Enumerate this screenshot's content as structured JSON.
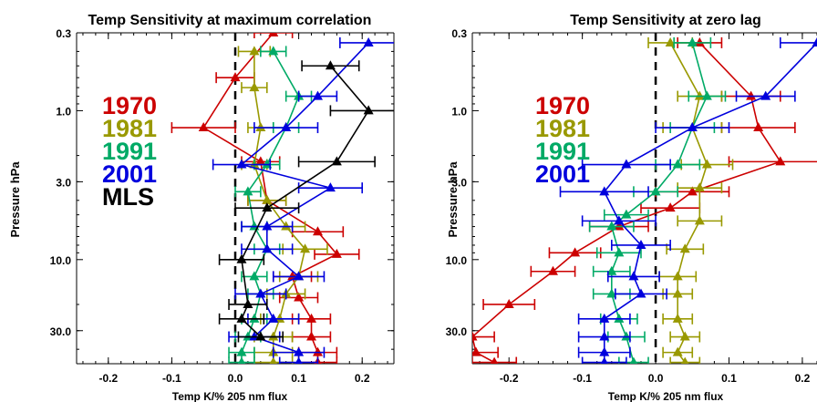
{
  "chart_data": [
    {
      "type": "line",
      "title": "Temp Sensitivity at maximum correlation",
      "xlabel": "Temp K/% 205 nm flux",
      "ylabel": "Pressure hPa",
      "xlim": [
        -0.25,
        0.25
      ],
      "ylim": [
        50,
        0.3
      ],
      "y_scale": "log",
      "x_ticks": [
        "-0.2",
        "-0.1",
        "0.0",
        "0.1",
        "0.2"
      ],
      "y_ticks": [
        "0.3",
        "1.0",
        "3.0",
        "10.0",
        "30.0"
      ],
      "reference_line_x": 0,
      "legend": [
        "1970",
        "1981",
        "1991",
        "2001",
        "MLS"
      ],
      "series": [
        {
          "name": "1970",
          "color": "#cc0000",
          "points": [
            [
              0.06,
              0.3
            ],
            [
              0.0,
              0.6
            ],
            [
              -0.05,
              1.3
            ],
            [
              0.04,
              2.2
            ],
            [
              0.05,
              4.0
            ],
            [
              0.13,
              6.5
            ],
            [
              0.16,
              9.2
            ],
            [
              0.09,
              13
            ],
            [
              0.1,
              18
            ],
            [
              0.12,
              25
            ],
            [
              0.12,
              33
            ],
            [
              0.13,
              42
            ],
            [
              0.13,
              49
            ]
          ],
          "err": [
            0.03,
            0.03,
            0.05,
            0.03,
            0.03,
            0.04,
            0.035,
            0.03,
            0.03,
            0.03,
            0.03,
            0.03,
            0.03
          ]
        },
        {
          "name": "1981",
          "color": "#999900",
          "points": [
            [
              0.03,
              0.4
            ],
            [
              0.03,
              0.7
            ],
            [
              0.04,
              1.3
            ],
            [
              0.03,
              2.3
            ],
            [
              0.05,
              4.0
            ],
            [
              0.08,
              6.0
            ],
            [
              0.11,
              8.5
            ],
            [
              0.1,
              13
            ],
            [
              0.08,
              17
            ],
            [
              0.07,
              25
            ],
            [
              0.06,
              33
            ],
            [
              0.06,
              42
            ],
            [
              0.06,
              49
            ]
          ],
          "err": [
            0.025,
            0.02,
            0.02,
            0.02,
            0.03,
            0.03,
            0.035,
            0.03,
            0.03,
            0.03,
            0.03,
            0.03,
            0.03
          ]
        },
        {
          "name": "1991",
          "color": "#00aa66",
          "points": [
            [
              0.06,
              0.4
            ],
            [
              0.1,
              0.8
            ],
            [
              0.08,
              1.3
            ],
            [
              0.05,
              2.3
            ],
            [
              0.02,
              3.5
            ],
            [
              0.03,
              6.0
            ],
            [
              0.05,
              8.5
            ],
            [
              0.03,
              13
            ],
            [
              0.04,
              17
            ],
            [
              0.03,
              25
            ],
            [
              0.02,
              33
            ],
            [
              0.01,
              42
            ],
            [
              0.01,
              49
            ]
          ],
          "err": [
            0.02,
            0.02,
            0.02,
            0.02,
            0.02,
            0.02,
            0.02,
            0.02,
            0.02,
            0.02,
            0.02,
            0.02,
            0.02
          ]
        },
        {
          "name": "2001",
          "color": "#0000dd",
          "points": [
            [
              0.21,
              0.35
            ],
            [
              0.13,
              0.8
            ],
            [
              0.08,
              1.3
            ],
            [
              0.01,
              2.3
            ],
            [
              0.15,
              3.3
            ],
            [
              0.05,
              6.0
            ],
            [
              0.05,
              8.5
            ],
            [
              0.1,
              13
            ],
            [
              0.04,
              17
            ],
            [
              0.06,
              25
            ],
            [
              0.03,
              33
            ],
            [
              0.1,
              42
            ],
            [
              0.1,
              49
            ]
          ],
          "err": [
            0.045,
            0.03,
            0.05,
            0.045,
            0.05,
            0.04,
            0.04,
            0.04,
            0.04,
            0.04,
            0.04,
            0.04,
            0.03
          ]
        },
        {
          "name": "MLS",
          "color": "#000000",
          "points": [
            [
              0.15,
              0.5
            ],
            [
              0.21,
              1.0
            ],
            [
              0.16,
              2.2
            ],
            [
              0.05,
              4.5
            ],
            [
              0.01,
              10
            ],
            [
              0.02,
              20
            ],
            [
              0.01,
              25
            ],
            [
              0.04,
              33
            ]
          ],
          "err": [
            0.045,
            0.06,
            0.06,
            0.05,
            0.035,
            0.03,
            0.035,
            0.035
          ]
        }
      ]
    },
    {
      "type": "line",
      "title": "Temp Sensitivity at zero lag",
      "xlabel": "Temp K/% 205 nm flux",
      "ylabel": "Pressure hPa",
      "xlim": [
        -0.25,
        0.22
      ],
      "ylim": [
        50,
        0.3
      ],
      "y_scale": "log",
      "x_ticks": [
        "-0.2",
        "-0.1",
        "0.0",
        "0.1",
        "0.2"
      ],
      "y_ticks": [
        "0.3",
        "1.0",
        "3.0",
        "10.0",
        "30.0"
      ],
      "reference_line_x": 0,
      "legend": [
        "1970",
        "1981",
        "1991",
        "2001"
      ],
      "series": [
        {
          "name": "1970",
          "color": "#cc0000",
          "points": [
            [
              0.06,
              0.35
            ],
            [
              0.13,
              0.8
            ],
            [
              0.14,
              1.3
            ],
            [
              0.17,
              2.2
            ],
            [
              0.05,
              3.5
            ],
            [
              0.02,
              4.5
            ],
            [
              -0.05,
              6.0
            ],
            [
              -0.11,
              9.0
            ],
            [
              -0.14,
              12
            ],
            [
              -0.2,
              20
            ],
            [
              -0.25,
              33
            ],
            [
              -0.245,
              42
            ],
            [
              -0.22,
              49
            ]
          ],
          "err": [
            0.03,
            0.04,
            0.05,
            0.07,
            0.05,
            0.04,
            0.04,
            0.035,
            0.03,
            0.035,
            0.03,
            0.03,
            0.03
          ]
        },
        {
          "name": "1981",
          "color": "#999900",
          "points": [
            [
              0.02,
              0.35
            ],
            [
              0.06,
              0.8
            ],
            [
              0.05,
              1.3
            ],
            [
              0.07,
              2.3
            ],
            [
              0.06,
              3.3
            ],
            [
              0.06,
              5.5
            ],
            [
              0.04,
              8.5
            ],
            [
              0.03,
              13
            ],
            [
              0.03,
              17
            ],
            [
              0.03,
              25
            ],
            [
              0.04,
              33
            ],
            [
              0.03,
              42
            ],
            [
              0.04,
              49
            ]
          ],
          "err": [
            0.03,
            0.03,
            0.04,
            0.035,
            0.03,
            0.03,
            0.025,
            0.025,
            0.02,
            0.02,
            0.02,
            0.02,
            0.02
          ]
        },
        {
          "name": "1991",
          "color": "#00aa66",
          "points": [
            [
              0.05,
              0.35
            ],
            [
              0.07,
              0.8
            ],
            [
              0.05,
              1.3
            ],
            [
              0.03,
              2.3
            ],
            [
              0.0,
              3.5
            ],
            [
              -0.04,
              5.0
            ],
            [
              -0.06,
              6.0
            ],
            [
              -0.05,
              9.0
            ],
            [
              -0.06,
              12
            ],
            [
              -0.06,
              17
            ],
            [
              -0.05,
              25
            ],
            [
              -0.04,
              33
            ],
            [
              -0.03,
              49
            ]
          ],
          "err": [
            0.025,
            0.025,
            0.03,
            0.03,
            0.03,
            0.03,
            0.03,
            0.03,
            0.025,
            0.025,
            0.025,
            0.025,
            0.02
          ]
        },
        {
          "name": "2001",
          "color": "#0000dd",
          "points": [
            [
              0.22,
              0.35
            ],
            [
              0.15,
              0.8
            ],
            [
              0.05,
              1.3
            ],
            [
              -0.04,
              2.3
            ],
            [
              -0.07,
              3.5
            ],
            [
              -0.05,
              5.5
            ],
            [
              -0.02,
              8.0
            ],
            [
              -0.03,
              13
            ],
            [
              -0.02,
              17
            ],
            [
              -0.07,
              25
            ],
            [
              -0.07,
              33
            ],
            [
              -0.07,
              42
            ],
            [
              -0.07,
              49
            ]
          ],
          "err": [
            0.05,
            0.04,
            0.05,
            0.06,
            0.06,
            0.05,
            0.04,
            0.035,
            0.035,
            0.035,
            0.035,
            0.035,
            0.03
          ]
        }
      ]
    }
  ]
}
